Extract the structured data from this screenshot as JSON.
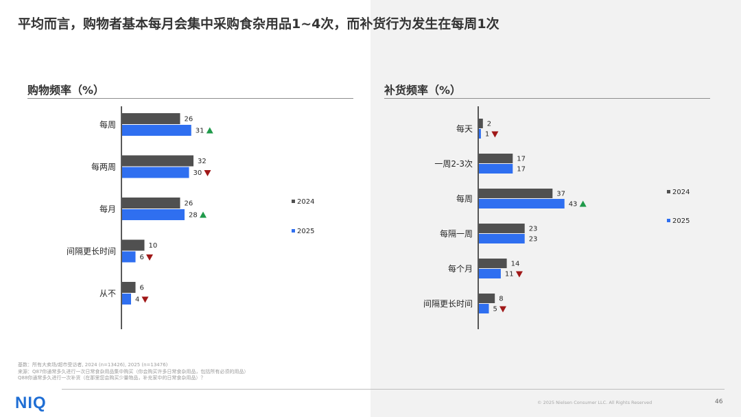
{
  "page": {
    "title": "平均而言，购物者基本每月会集中采购食杂用品1~4次，而补货行为发生在每周1次",
    "footnotes": [
      "基数：所有大卖场/超市受访者, 2024 (n=13426), 2025 (n=13476)",
      "来源：Q87你通常多久进行一次日常食杂用品集中购买（你会购买许多日常食杂用品，包括所有必须的用品）",
      "Q88你通常多久进行一次补货（在那里您会购买少量物品，补充家中的日常食杂用品）？"
    ],
    "logo": "NIQ",
    "copyright": "© 2025 Nielsen Consumer LLC. All Rights Reserved",
    "page_number": "46"
  },
  "colors": {
    "series_2024": "#505050",
    "series_2025": "#2f6ff0",
    "arrow_up": "#1f9a4a",
    "arrow_down": "#a01818"
  },
  "chart_data": [
    {
      "type": "bar",
      "orientation": "horizontal",
      "title": "购物频率（%）",
      "categories": [
        "每周",
        "每两周",
        "每月",
        "间隔更长时间",
        "从不"
      ],
      "series": [
        {
          "name": "2024",
          "values": [
            26,
            32,
            26,
            10,
            6
          ]
        },
        {
          "name": "2025",
          "values": [
            31,
            30,
            28,
            6,
            4
          ]
        }
      ],
      "change_markers": [
        "up",
        "down",
        "up",
        "down",
        "down"
      ],
      "legend": "right",
      "grid": false
    },
    {
      "type": "bar",
      "orientation": "horizontal",
      "title": "补货频率（%）",
      "categories": [
        "每天",
        "一周2-3次",
        "每周",
        "每隔一周",
        "每个月",
        "间隔更长时间"
      ],
      "series": [
        {
          "name": "2024",
          "values": [
            2,
            17,
            37,
            23,
            14,
            8
          ]
        },
        {
          "name": "2025",
          "values": [
            1,
            17,
            43,
            23,
            11,
            5
          ]
        }
      ],
      "change_markers": [
        "down",
        "none",
        "up",
        "none",
        "down",
        "down"
      ],
      "legend": "right",
      "grid": false
    }
  ]
}
